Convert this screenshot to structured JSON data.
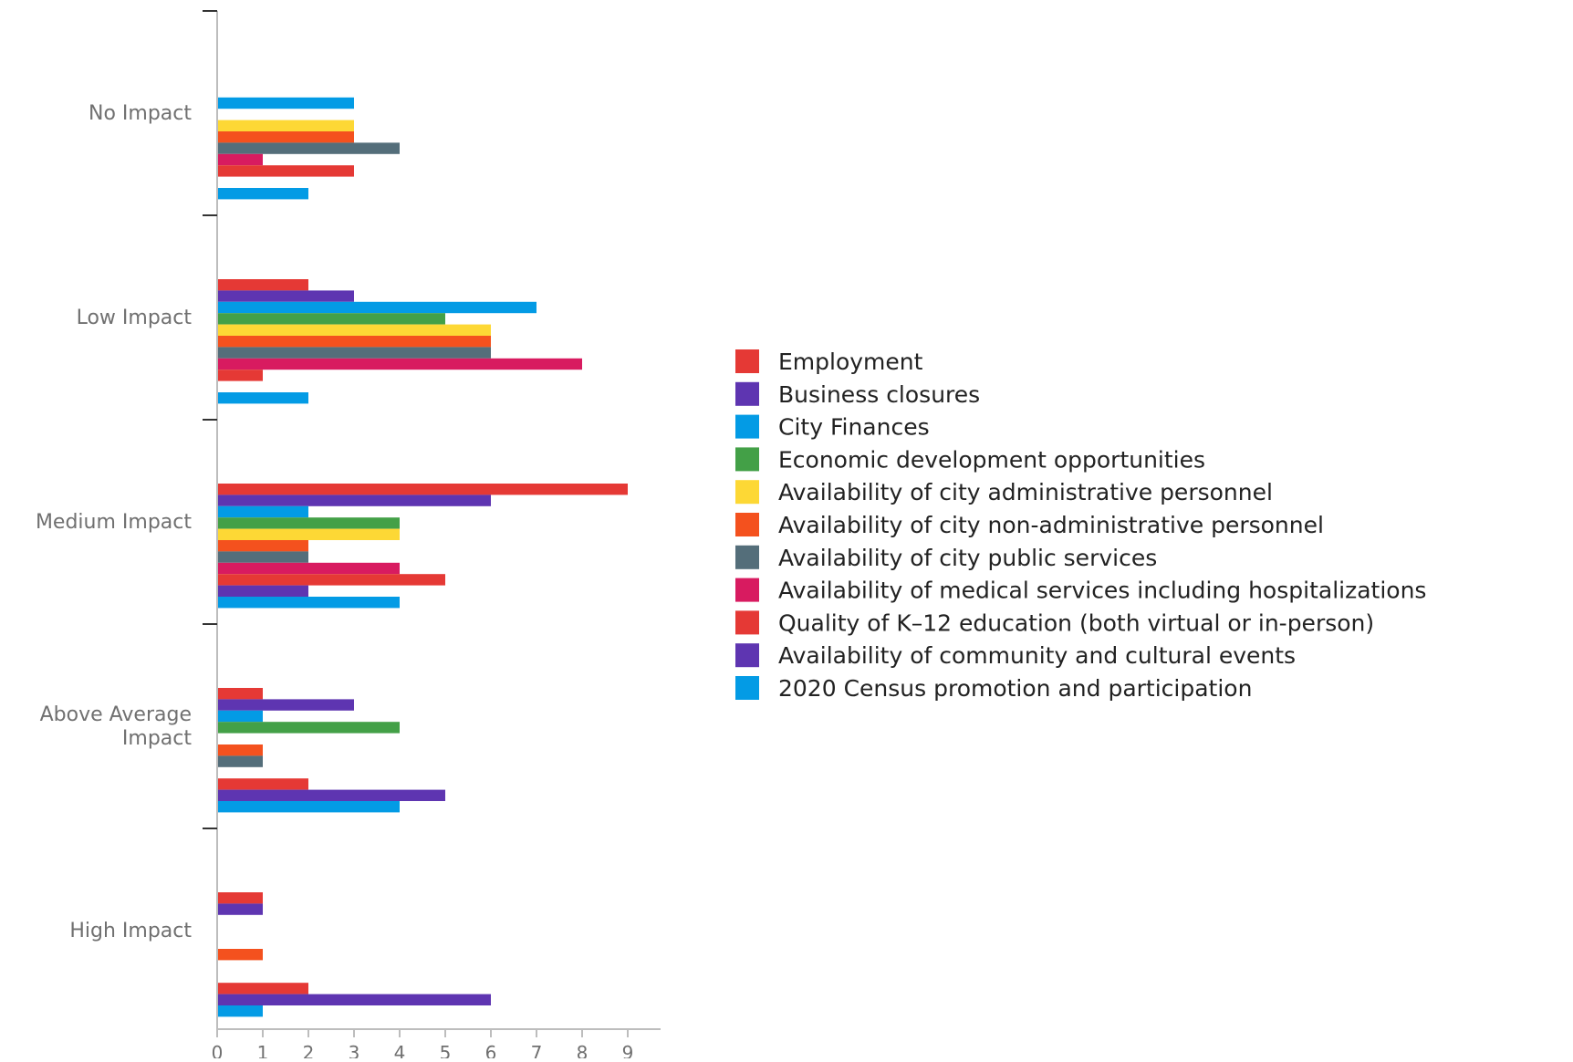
{
  "chart_data": {
    "type": "bar",
    "orientation": "horizontal",
    "title": "",
    "xlabel": "",
    "ylabel": "",
    "xlim": [
      0,
      9
    ],
    "x_ticks": [
      "0",
      "1",
      "2",
      "3",
      "4",
      "5",
      "6",
      "7",
      "8",
      "9"
    ],
    "grid": false,
    "legend_position": "right",
    "categories": [
      "No Impact",
      "Low Impact",
      "Medium Impact",
      "Above Average Impact",
      "High Impact"
    ],
    "category_labels": [
      [
        "No Impact"
      ],
      [
        "Low Impact"
      ],
      [
        "Medium Impact"
      ],
      [
        "Above Average",
        "Impact"
      ],
      [
        "High Impact"
      ]
    ],
    "series": [
      {
        "name": "Employment",
        "color": "#e53935",
        "values": [
          0,
          2,
          9,
          1,
          1
        ]
      },
      {
        "name": "Business closures",
        "color": "#5e35b1",
        "values": [
          0,
          3,
          6,
          3,
          1
        ]
      },
      {
        "name": "City Finances",
        "color": "#039be5",
        "values": [
          3,
          7,
          2,
          1,
          0
        ]
      },
      {
        "name": "Economic development opportunities",
        "color": "#43a047",
        "values": [
          0,
          5,
          4,
          4,
          0
        ]
      },
      {
        "name": "Availability of city administrative personnel",
        "color": "#fdd835",
        "values": [
          3,
          6,
          4,
          0,
          0
        ]
      },
      {
        "name": "Availability of city non-administrative personnel",
        "color": "#f4511e",
        "values": [
          3,
          6,
          2,
          1,
          1
        ]
      },
      {
        "name": "Availability of city public services",
        "color": "#546e7a",
        "values": [
          4,
          6,
          2,
          1,
          0
        ]
      },
      {
        "name": "Availability of medical services including hospitalizations",
        "color": "#d81b60",
        "values": [
          1,
          8,
          4,
          0,
          0
        ]
      },
      {
        "name": "Quality of K–12 education (both virtual or in-person)",
        "color": "#e53935",
        "values": [
          3,
          1,
          5,
          2,
          2
        ]
      },
      {
        "name": "Availability of community and cultural events",
        "color": "#5e35b1",
        "values": [
          0,
          0,
          2,
          5,
          6
        ]
      },
      {
        "name": "2020 Census promotion and participation",
        "color": "#039be5",
        "values": [
          2,
          2,
          4,
          4,
          1
        ]
      }
    ]
  }
}
